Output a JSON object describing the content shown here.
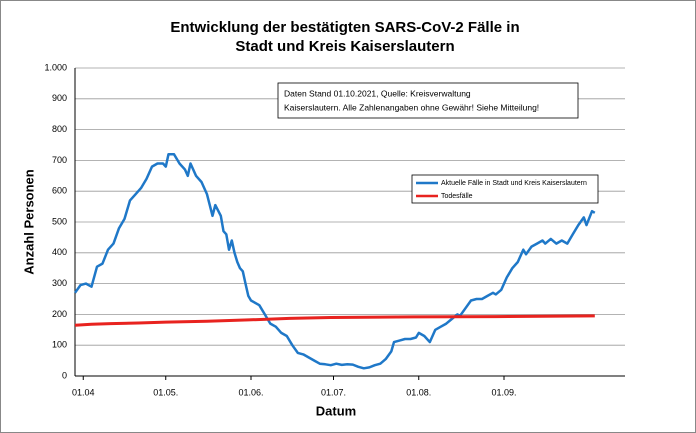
{
  "chart_data": {
    "type": "line",
    "title": [
      "Entwicklung der bestätigten SARS-CoV-2 Fälle in",
      "Stadt und Kreis Kaiserslautern"
    ],
    "x_label": "Datum",
    "y_label": "Anzahl Personen",
    "annotation": [
      "Daten Stand 01.10.2021, Quelle: Kreisverwaltung",
      "Kaiserslautern. Alle Zahlenangaben ohne Gewähr! Siehe Mitteilung!"
    ],
    "xlim": [
      -3,
      197
    ],
    "xticks": [
      {
        "value": 0,
        "label": "01.04"
      },
      {
        "value": 30,
        "label": "01.05."
      },
      {
        "value": 61,
        "label": "01.06."
      },
      {
        "value": 91,
        "label": "01.07."
      },
      {
        "value": 122,
        "label": "01.08."
      },
      {
        "value": 153,
        "label": "01.09."
      }
    ],
    "ylim": [
      0,
      1000
    ],
    "yticks": [
      0,
      100,
      200,
      300,
      400,
      500,
      600,
      700,
      800,
      900,
      {
        "value": 1000,
        "label": "1.000"
      }
    ],
    "grid": true,
    "legend": "right",
    "series": [
      {
        "name": "Aktuelle Fälle in Stadt und Kreis Kaiserslautern",
        "color": "#1f78c8",
        "x": [
          -3,
          -1,
          1,
          3,
          5,
          7,
          9,
          11,
          13,
          15,
          17,
          19,
          21,
          23,
          25,
          27,
          29,
          30,
          31,
          33,
          35,
          37,
          38,
          39,
          41,
          43,
          45,
          47,
          48,
          50,
          51,
          52,
          53,
          54,
          55,
          56,
          57,
          58,
          59,
          60,
          61,
          62,
          64,
          66,
          68,
          70,
          72,
          74,
          76,
          78,
          80,
          82,
          84,
          86,
          88,
          90,
          92,
          94,
          96,
          98,
          100,
          102,
          104,
          106,
          108,
          110,
          112,
          113,
          115,
          117,
          119,
          121,
          122,
          124,
          126,
          128,
          130,
          132,
          134,
          136,
          137,
          139,
          141,
          143,
          145,
          147,
          149,
          150,
          152,
          154,
          156,
          158,
          160,
          161,
          163,
          165,
          167,
          168,
          170,
          172,
          174,
          176,
          178,
          180,
          182,
          183,
          185,
          186
        ],
        "values": [
          270,
          295,
          300,
          290,
          355,
          365,
          410,
          430,
          480,
          510,
          570,
          590,
          610,
          640,
          680,
          690,
          690,
          680,
          720,
          720,
          690,
          670,
          650,
          690,
          650,
          630,
          590,
          520,
          555,
          520,
          470,
          460,
          410,
          440,
          400,
          370,
          350,
          340,
          300,
          260,
          245,
          240,
          230,
          200,
          170,
          160,
          140,
          130,
          100,
          75,
          70,
          60,
          50,
          40,
          38,
          35,
          40,
          36,
          38,
          37,
          30,
          25,
          28,
          35,
          40,
          55,
          80,
          110,
          115,
          120,
          120,
          125,
          140,
          130,
          110,
          150,
          160,
          170,
          185,
          200,
          195,
          220,
          245,
          250,
          250,
          260,
          270,
          265,
          280,
          320,
          350,
          370,
          410,
          395,
          420,
          430,
          440,
          430,
          445,
          430,
          440,
          430,
          460,
          490,
          515,
          490,
          535,
          530
        ]
      },
      {
        "name": "Todesfälle",
        "color": "#e8231f",
        "x": [
          -3,
          3,
          10,
          20,
          30,
          45,
          60,
          75,
          90,
          120,
          150,
          186
        ],
        "values": [
          165,
          168,
          170,
          172,
          175,
          178,
          182,
          187,
          190,
          192,
          193,
          195
        ]
      }
    ]
  }
}
